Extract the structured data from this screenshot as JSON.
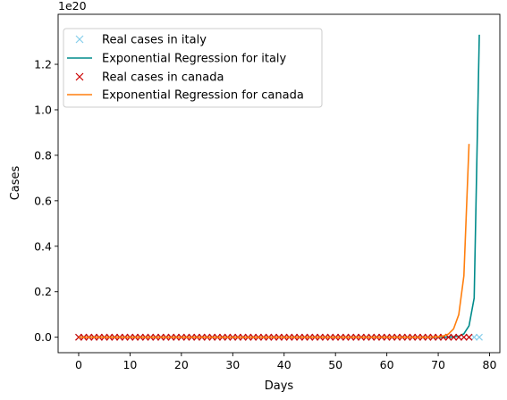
{
  "chart_data": {
    "type": "line",
    "xlabel": "Days",
    "ylabel": "Cases",
    "offset_label": "1e20",
    "xlim": [
      -4,
      82
    ],
    "ylim": [
      -0.068,
      1.42
    ],
    "xticks": [
      0,
      10,
      20,
      30,
      40,
      50,
      60,
      70,
      80
    ],
    "yticks": [
      0.0,
      0.2,
      0.4,
      0.6,
      0.8,
      1.0,
      1.2
    ],
    "ytick_labels": [
      "0.0",
      "0.2",
      "0.4",
      "0.6",
      "0.8",
      "1.0",
      "1.2"
    ],
    "grid": false,
    "legend_position": "upper-left",
    "series": [
      {
        "name": "Real cases in italy",
        "kind": "scatter",
        "marker": "x",
        "color": "#87ceeb",
        "x_start": 0,
        "x_end": 78,
        "y_constant": 0.0
      },
      {
        "name": "Exponential Regression for italy",
        "kind": "line",
        "color": "#008b8b",
        "x": [
          0,
          60,
          66,
          68,
          70,
          71,
          72,
          73,
          74,
          75,
          76,
          77,
          78
        ],
        "y": [
          0,
          0,
          0,
          0,
          0,
          0,
          0.0004,
          0.0013,
          0.0044,
          0.015,
          0.05,
          0.172,
          1.33
        ]
      },
      {
        "name": "Real cases in canada",
        "kind": "scatter",
        "marker": "x",
        "color": "#cc0000",
        "x_start": 0,
        "x_end": 76,
        "y_constant": 0.0
      },
      {
        "name": "Exponential Regression for canada",
        "kind": "line",
        "color": "#ff7f0e",
        "x": [
          0,
          60,
          66,
          68,
          69,
          70,
          71,
          72,
          73,
          74,
          75,
          76
        ],
        "y": [
          0,
          0,
          0,
          0,
          0.0008,
          0.0021,
          0.0055,
          0.014,
          0.037,
          0.099,
          0.27,
          0.85
        ]
      }
    ]
  }
}
